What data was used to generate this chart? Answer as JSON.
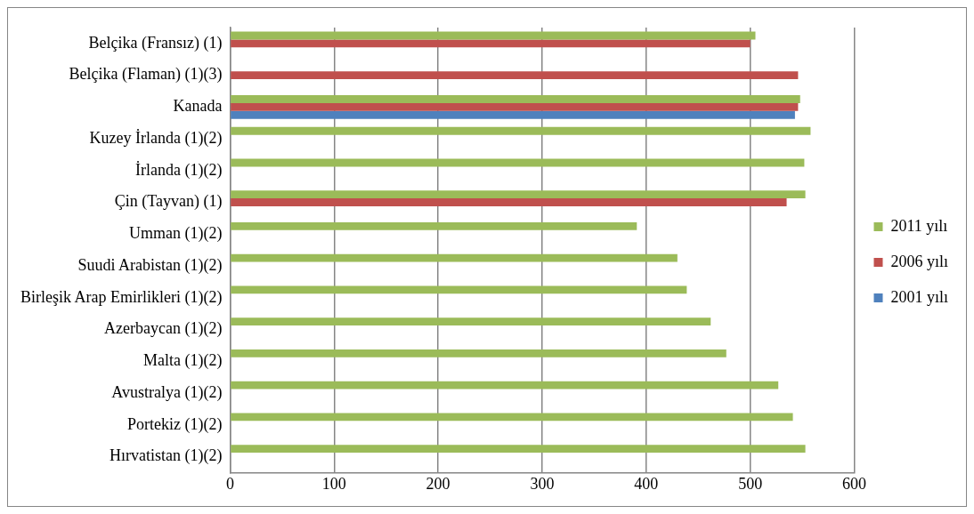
{
  "chart_data": {
    "type": "bar",
    "orientation": "horizontal",
    "categories": [
      "Belçika (Fransız) (1)",
      "Belçika (Flaman) (1)(3)",
      "Kanada",
      "Kuzey İrlanda (1)(2)",
      "İrlanda (1)(2)",
      "Çin (Tayvan) (1)",
      "Umman (1)(2)",
      "Suudi Arabistan (1)(2)",
      "Birleşik Arap Emirlikleri (1)(2)",
      "Azerbaycan (1)(2)",
      "Malta (1)(2)",
      "Avustralya (1)(2)",
      "Portekiz (1)(2)",
      "Hırvatistan (1)(2)"
    ],
    "series": [
      {
        "name": "2011 yılı",
        "color": "#9bbb59",
        "values": [
          505,
          null,
          548,
          558,
          552,
          553,
          391,
          430,
          439,
          462,
          477,
          527,
          541,
          553
        ]
      },
      {
        "name": "2006 yılı",
        "color": "#c0504d",
        "values": [
          500,
          546,
          546,
          null,
          null,
          535,
          null,
          null,
          null,
          null,
          null,
          null,
          null,
          null
        ]
      },
      {
        "name": "2001 yılı",
        "color": "#4f81bd",
        "values": [
          null,
          null,
          543,
          null,
          null,
          null,
          null,
          null,
          null,
          null,
          null,
          null,
          null,
          null
        ]
      }
    ],
    "xlim": [
      0,
      600
    ],
    "xticks": [
      0,
      100,
      200,
      300,
      400,
      500,
      600
    ],
    "grid": "x",
    "legend": "right"
  }
}
